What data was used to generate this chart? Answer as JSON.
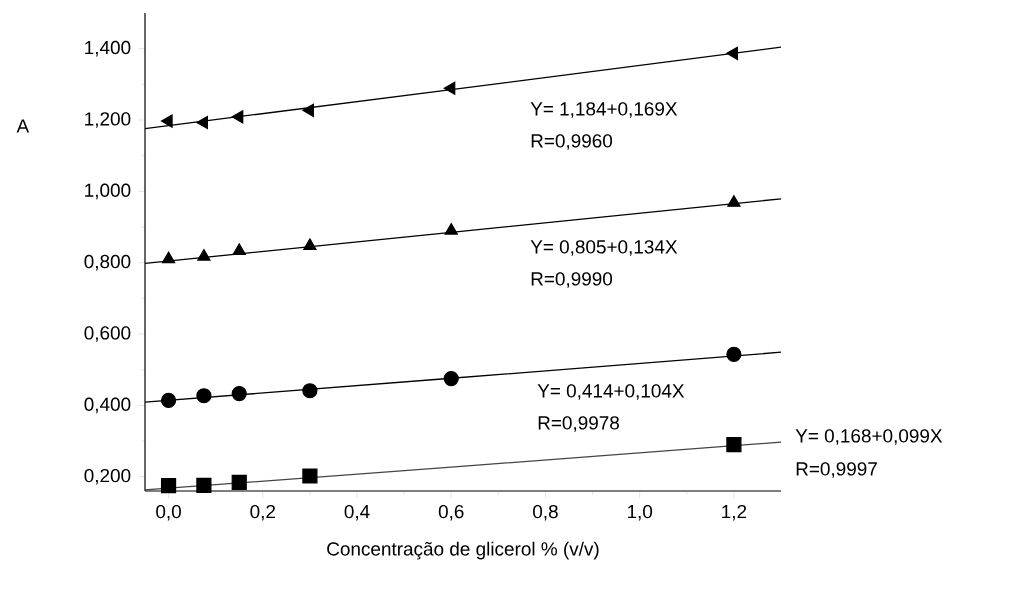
{
  "chart_data": {
    "type": "scatter",
    "xlabel": "Concentração de glicerol % (v/v)",
    "ylabel": "A",
    "x": [
      0,
      0.075,
      0.15,
      0.3,
      0.6,
      1.2
    ],
    "series": [
      {
        "marker": "square",
        "color": "#000000",
        "values": [
          0.175,
          0.176,
          0.184,
          0.202,
          null,
          0.29
        ]
      },
      {
        "marker": "circle",
        "color": "#000000",
        "values": [
          0.414,
          0.427,
          0.433,
          0.441,
          0.475,
          0.543
        ]
      },
      {
        "marker": "triangle",
        "color": "#000000",
        "values": [
          0.81,
          0.817,
          0.833,
          0.847,
          0.89,
          0.968
        ]
      },
      {
        "marker": "triangle-left",
        "color": "#000000",
        "values": [
          1.197,
          1.193,
          1.209,
          1.227,
          1.289,
          1.387
        ]
      },
      {
        "type": "line",
        "marker": "none",
        "color": "#444444",
        "x": [
          -0.05,
          0.6,
          1.3
        ],
        "values": [
          0.163,
          0.227,
          0.297
        ]
      },
      {
        "type": "line",
        "marker": "none",
        "color": "#000000",
        "x": [
          -0.05,
          0.6,
          1.3
        ],
        "values": [
          0.409,
          0.476,
          0.549
        ]
      },
      {
        "type": "line",
        "marker": "none",
        "color": "#000000",
        "x": [
          -0.05,
          0.6,
          1.3
        ],
        "values": [
          0.798,
          0.885,
          0.979
        ]
      },
      {
        "type": "line",
        "marker": "none",
        "color": "#000000",
        "x": [
          -0.05,
          0.6,
          1.3
        ],
        "values": [
          1.176,
          1.285,
          1.404
        ]
      }
    ],
    "xlim": [
      -0.05,
      1.3
    ],
    "ylim": [
      0.16,
      1.5
    ],
    "xticks": [
      {
        "value": 0,
        "label": "0,0"
      },
      {
        "value": 0.2,
        "label": "0,2"
      },
      {
        "value": 0.4,
        "label": "0,4"
      },
      {
        "value": 0.6,
        "label": "0,6"
      },
      {
        "value": 0.8,
        "label": "0,8"
      },
      {
        "value": 1.0,
        "label": "1,0"
      },
      {
        "value": 1.2,
        "label": "1,2"
      }
    ],
    "yticks": [
      {
        "value": 0.2,
        "label": "0,200"
      },
      {
        "value": 0.4,
        "label": "0,400"
      },
      {
        "value": 0.6,
        "label": "0,600"
      },
      {
        "value": 0.8,
        "label": "0,800"
      },
      {
        "value": 1.0,
        "label": "1,000"
      },
      {
        "value": 1.2,
        "label": "1,200"
      },
      {
        "value": 1.4,
        "label": "1,400"
      }
    ],
    "annotations": [
      "Y= 1,184+0,169X",
      "R=0,9960",
      "Y= 0,805+0,134X",
      "R=0,9990",
      "Y= 0,414+0,104X",
      "R=0,9978",
      "Y= 0,168+0,099X",
      "R=0,9997"
    ]
  }
}
